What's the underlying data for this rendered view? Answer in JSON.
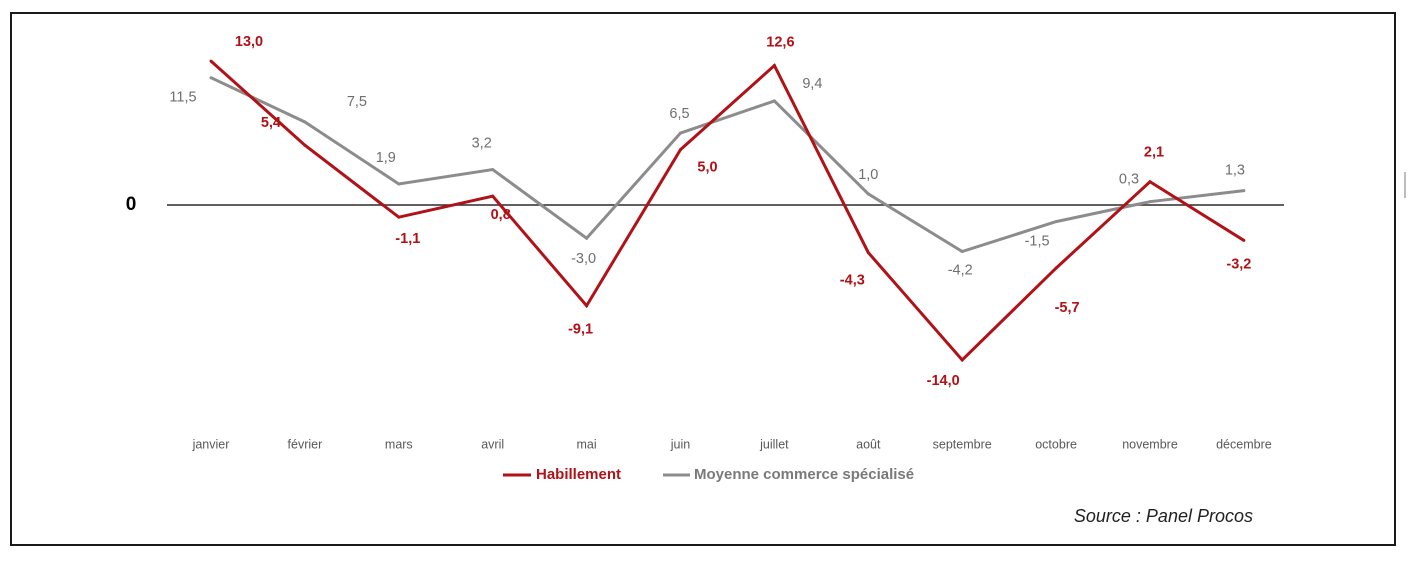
{
  "chart_data": {
    "type": "line",
    "categories": [
      "janvier",
      "février",
      "mars",
      "avril",
      "mai",
      "juin",
      "juillet",
      "août",
      "septembre",
      "octobre",
      "novembre",
      "décembre"
    ],
    "series": [
      {
        "name": "Habillement",
        "color": "#b01217",
        "values": [
          13.0,
          5.4,
          -1.1,
          0.8,
          -9.1,
          5.0,
          12.6,
          -4.3,
          -14.0,
          -5.7,
          2.1,
          -3.2
        ],
        "labels": [
          "13,0",
          "5,4",
          "-1,1",
          "0,8",
          "-9,1",
          "5,0",
          "12,6",
          "-4,3",
          "-14,0",
          "-5,7",
          "2,1",
          "-3,2"
        ]
      },
      {
        "name": "Moyenne commerce spécialisé",
        "color": "#8c8c8c",
        "values": [
          11.5,
          7.5,
          1.9,
          3.2,
          -3.0,
          6.5,
          9.4,
          1.0,
          -4.2,
          -1.5,
          0.3,
          1.3
        ],
        "labels": [
          "11,5",
          "7,5",
          "1,9",
          "3,2",
          "-3,0",
          "6,5",
          "9,4",
          "1,0",
          "-4,2",
          "-1,5",
          "0,3",
          "1,3"
        ]
      }
    ],
    "zero_label": "0",
    "ylim": [
      -14,
      13
    ],
    "grid": false,
    "legend": "bottom-center",
    "source": "Source : Panel Procos"
  }
}
